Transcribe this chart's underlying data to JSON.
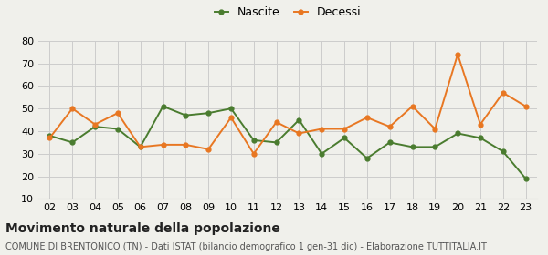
{
  "years": [
    "02",
    "03",
    "04",
    "05",
    "06",
    "07",
    "08",
    "09",
    "10",
    "11",
    "12",
    "13",
    "14",
    "15",
    "16",
    "17",
    "18",
    "19",
    "20",
    "21",
    "22",
    "23"
  ],
  "nascite": [
    38,
    35,
    42,
    41,
    33,
    51,
    47,
    48,
    50,
    36,
    35,
    45,
    30,
    37,
    28,
    35,
    33,
    33,
    39,
    37,
    31,
    19
  ],
  "decessi": [
    37,
    50,
    43,
    48,
    33,
    34,
    34,
    32,
    46,
    30,
    44,
    39,
    41,
    41,
    46,
    42,
    51,
    41,
    74,
    43,
    57,
    51
  ],
  "nascite_color": "#4a7c2f",
  "decessi_color": "#e87722",
  "background_color": "#f0f0eb",
  "grid_color": "#cccccc",
  "title": "Movimento naturale della popolazione",
  "subtitle": "COMUNE DI BRENTONICO (TN) - Dati ISTAT (bilancio demografico 1 gen-31 dic) - Elaborazione TUTTITALIA.IT",
  "label_nascite": "Nascite",
  "label_decessi": "Decessi",
  "ylim": [
    10,
    80
  ],
  "yticks": [
    10,
    20,
    30,
    40,
    50,
    60,
    70,
    80
  ],
  "title_fontsize": 10,
  "subtitle_fontsize": 7,
  "legend_fontsize": 9,
  "tick_fontsize": 8
}
